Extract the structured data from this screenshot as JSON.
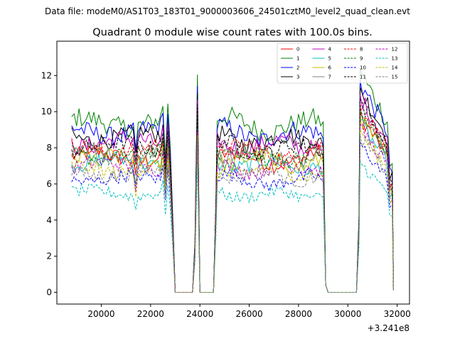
{
  "chart_data": {
    "type": "line",
    "suptitle": "Data file: modeM0/AS1T03_183T01_9000003606_24501cztM0_level2_quad_clean.evt",
    "title": "Quadrant 0 module wise count rates with 100.0s bins.",
    "xlabel": "",
    "ylabel": "",
    "x_offset_label": "+3.241e8",
    "xlim": [
      18200,
      32500
    ],
    "ylim": [
      -0.65,
      13.9
    ],
    "x_ticks": [
      20000,
      22000,
      24000,
      26000,
      28000,
      30000,
      32000
    ],
    "y_ticks": [
      0,
      2,
      4,
      6,
      8,
      10,
      12
    ],
    "legend": {
      "placement": "top-right",
      "ncol": 4
    },
    "segments": [
      {
        "x0": 18800,
        "x1": 22900
      },
      {
        "x0": 24700,
        "x1": 29000
      },
      {
        "x0": 30500,
        "x1": 31800
      }
    ],
    "gaps_x": [
      23050,
      23700,
      24050,
      24550,
      29100,
      30350,
      31850
    ],
    "spikes": [
      {
        "x": 23900,
        "factor": 1.35
      },
      {
        "x": 24000,
        "factor": 1.05
      }
    ],
    "series": [
      {
        "name": "0",
        "color": "#ff0000",
        "style": "solid",
        "level": 7.5
      },
      {
        "name": "1",
        "color": "#008000",
        "style": "solid",
        "level": 9.4
      },
      {
        "name": "2",
        "color": "#0000ff",
        "style": "solid",
        "level": 8.9
      },
      {
        "name": "3",
        "color": "#000000",
        "style": "solid",
        "level": 8.6
      },
      {
        "name": "4",
        "color": "#bf00bf",
        "style": "solid",
        "level": 8.3
      },
      {
        "name": "5",
        "color": "#00bfbf",
        "style": "solid",
        "level": 7.2
      },
      {
        "name": "6",
        "color": "#bfbf00",
        "style": "solid",
        "level": 7.4
      },
      {
        "name": "7",
        "color": "#808080",
        "style": "solid",
        "level": 7.8
      },
      {
        "name": "8",
        "color": "#ff0000",
        "style": "dashed",
        "level": 7.9
      },
      {
        "name": "9",
        "color": "#008000",
        "style": "dashed",
        "level": 7.6
      },
      {
        "name": "10",
        "color": "#0000ff",
        "style": "dashed",
        "level": 6.3
      },
      {
        "name": "11",
        "color": "#000000",
        "style": "dashed",
        "level": 8.1
      },
      {
        "name": "12",
        "color": "#bf00bf",
        "style": "dashed",
        "level": 7.0
      },
      {
        "name": "13",
        "color": "#00bfbf",
        "style": "dashed",
        "level": 5.5
      },
      {
        "name": "14",
        "color": "#bfbf00",
        "style": "dashed",
        "level": 6.8
      },
      {
        "name": "15",
        "color": "#808080",
        "style": "dashed",
        "level": 6.6
      }
    ]
  }
}
